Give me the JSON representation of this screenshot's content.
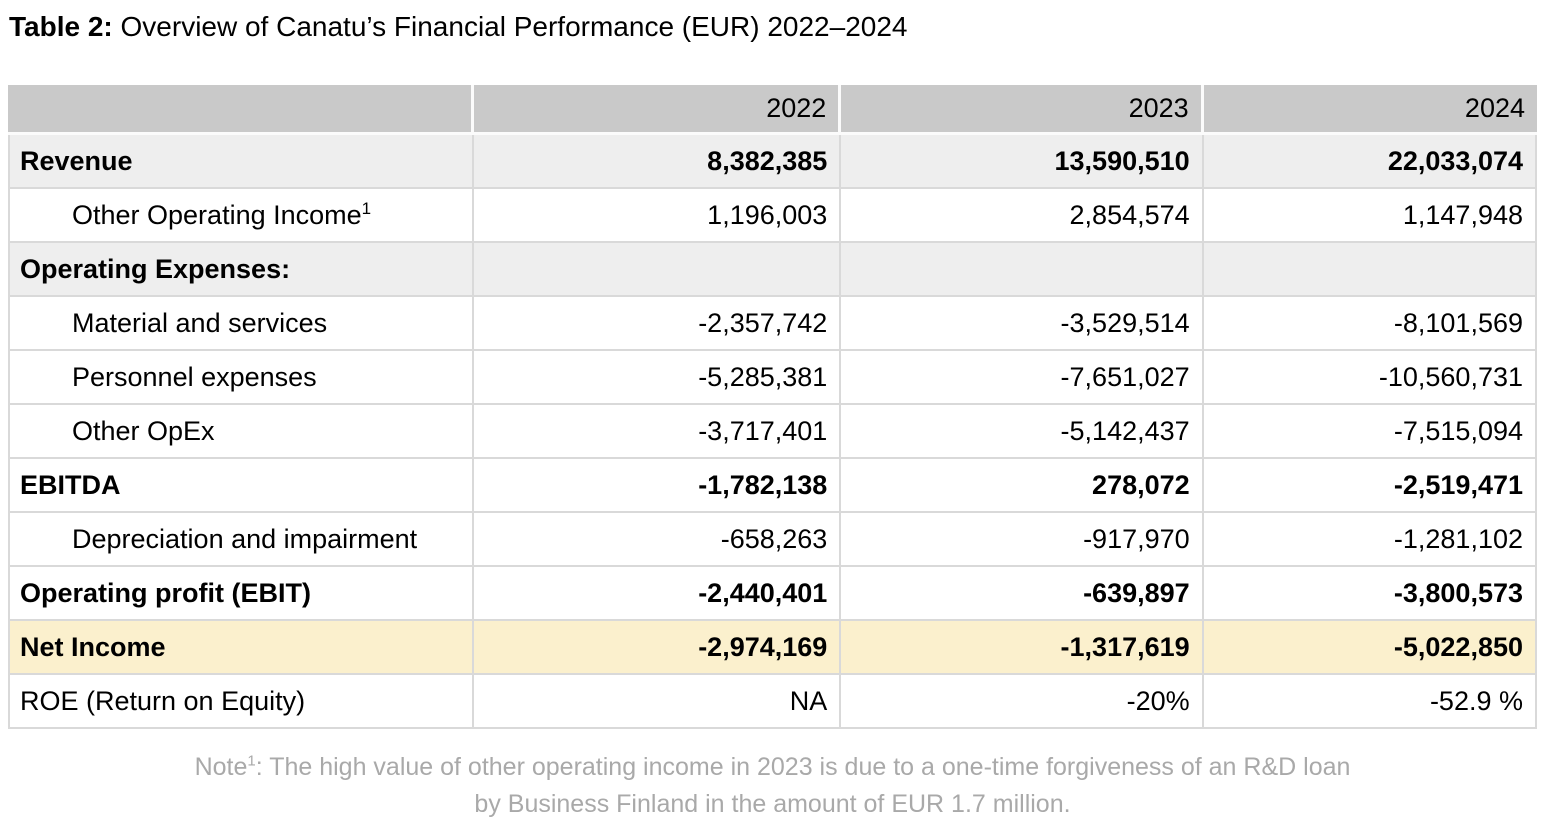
{
  "title": {
    "prefix": "Table 2:",
    "rest": " Overview of Canatu’s Financial Performance (EUR) 2022–2024"
  },
  "table": {
    "columns": [
      "",
      "2022",
      "2023",
      "2024"
    ],
    "rows": [
      {
        "label": "Revenue",
        "sup": "",
        "values": [
          "8,382,385",
          "13,590,510",
          "22,033,074"
        ],
        "bold": true,
        "shaded": true,
        "indent": false,
        "highlight": false
      },
      {
        "label": "Other Operating Income",
        "sup": "1",
        "values": [
          "1,196,003",
          "2,854,574",
          "1,147,948"
        ],
        "bold": false,
        "shaded": false,
        "indent": true,
        "highlight": false
      },
      {
        "label": "Operating Expenses:",
        "sup": "",
        "values": [
          "",
          "",
          ""
        ],
        "bold": true,
        "shaded": true,
        "indent": false,
        "highlight": false
      },
      {
        "label": "Material and services",
        "sup": "",
        "values": [
          "-2,357,742",
          "-3,529,514",
          "-8,101,569"
        ],
        "bold": false,
        "shaded": false,
        "indent": true,
        "highlight": false
      },
      {
        "label": "Personnel expenses",
        "sup": "",
        "values": [
          "-5,285,381",
          "-7,651,027",
          "-10,560,731"
        ],
        "bold": false,
        "shaded": false,
        "indent": true,
        "highlight": false
      },
      {
        "label": "Other OpEx",
        "sup": "",
        "values": [
          "-3,717,401",
          "-5,142,437",
          "-7,515,094"
        ],
        "bold": false,
        "shaded": false,
        "indent": true,
        "highlight": false
      },
      {
        "label": "EBITDA",
        "sup": "",
        "values": [
          "-1,782,138",
          "278,072",
          "-2,519,471"
        ],
        "bold": true,
        "shaded": false,
        "indent": false,
        "highlight": false
      },
      {
        "label": "Depreciation and impairment",
        "sup": "",
        "values": [
          "-658,263",
          "-917,970",
          "-1,281,102"
        ],
        "bold": false,
        "shaded": false,
        "indent": true,
        "highlight": false
      },
      {
        "label": "Operating profit (EBIT)",
        "sup": "",
        "values": [
          "-2,440,401",
          "-639,897",
          "-3,800,573"
        ],
        "bold": true,
        "shaded": false,
        "indent": false,
        "highlight": false
      },
      {
        "label": "Net Income",
        "sup": "",
        "values": [
          "-2,974,169",
          "-1,317,619",
          "-5,022,850"
        ],
        "bold": true,
        "shaded": false,
        "indent": false,
        "highlight": true
      },
      {
        "label": "ROE (Return on Equity)",
        "sup": "",
        "values": [
          "NA",
          "-20%",
          "-52.9 %"
        ],
        "bold": false,
        "shaded": false,
        "indent": false,
        "highlight": false
      }
    ]
  },
  "footnote": {
    "prefix": "Note",
    "sup": "1",
    "line1_rest": ": The high value of other operating income in 2023 is due to a one-time forgiveness of an R&D loan",
    "line2": "by Business Finland in the amount of EUR 1.7 million."
  },
  "colors": {
    "header_bg": "#c9c9c9",
    "shade_bg": "#eeeeee",
    "highlight_bg": "#fbf0cd",
    "border": "#d9d9d9",
    "footnote_text": "#a9a9a9"
  }
}
